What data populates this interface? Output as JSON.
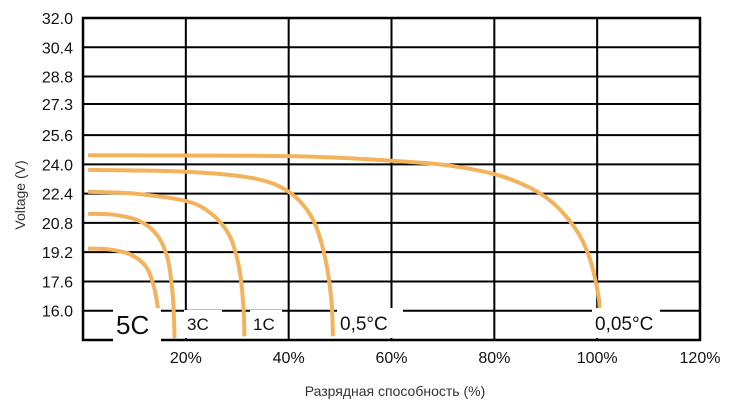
{
  "chart_data": {
    "type": "line",
    "title": "",
    "xlabel": "Разрядная способность (%)",
    "ylabel": "Voltage (V)",
    "xlim": [
      0,
      120
    ],
    "ylim": [
      14.4,
      32.0
    ],
    "x_ticks": [
      "20%",
      "40%",
      "60%",
      "80%",
      "100%",
      "120%"
    ],
    "y_ticks": [
      "32.0",
      "30.4",
      "28.8",
      "27.3",
      "25.6",
      "24.0",
      "22.4",
      "20.8",
      "19.2",
      "17.6",
      "16.0"
    ],
    "grid": true,
    "line_color": "#f2b35c",
    "series": [
      {
        "name": "5C",
        "x": [
          1,
          5,
          9,
          12,
          13.5,
          14.4,
          14.6
        ],
        "y": [
          19.4,
          19.35,
          19.1,
          18.5,
          17.6,
          16.5,
          15.9
        ]
      },
      {
        "name": "3C",
        "x": [
          1,
          6,
          11,
          14.5,
          16.5,
          17.4,
          17.7,
          17.8
        ],
        "y": [
          21.3,
          21.25,
          20.9,
          20.1,
          18.8,
          17.0,
          15.5,
          14.5
        ]
      },
      {
        "name": "1C",
        "x": [
          1,
          10,
          20,
          25,
          28.5,
          30.4,
          31.2,
          31.4
        ],
        "y": [
          22.5,
          22.4,
          22.0,
          21.3,
          20.1,
          18.3,
          16.2,
          14.6
        ]
      },
      {
        "name": "0,5°C",
        "x": [
          1,
          20,
          33,
          40,
          44.5,
          47,
          48.3,
          48.6
        ],
        "y": [
          23.7,
          23.6,
          23.25,
          22.5,
          21.1,
          19.0,
          16.6,
          14.6
        ]
      },
      {
        "name": "0,05°C",
        "x": [
          1,
          40,
          60,
          72,
          82,
          90,
          95.5,
          98.5,
          100.2,
          100.5
        ],
        "y": [
          24.5,
          24.45,
          24.2,
          23.9,
          23.3,
          22.2,
          20.6,
          18.9,
          16.9,
          16.0
        ]
      }
    ]
  }
}
